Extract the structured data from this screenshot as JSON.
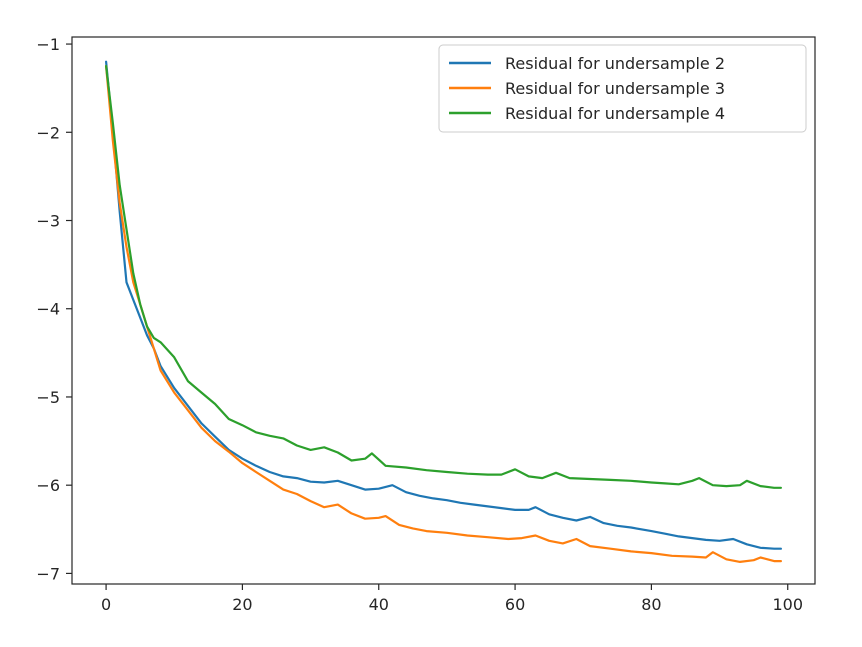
{
  "chart_data": {
    "type": "line",
    "title": "",
    "xlabel": "",
    "ylabel": "",
    "xlim": [
      -5,
      104
    ],
    "ylim": [
      -7.12,
      -0.92
    ],
    "x_ticks": [
      0,
      20,
      40,
      60,
      80,
      100
    ],
    "x_tick_labels": [
      "0",
      "20",
      "40",
      "60",
      "80",
      "100"
    ],
    "y_ticks": [
      -1,
      -2,
      -3,
      -4,
      -5,
      -6,
      -7
    ],
    "y_tick_labels": [
      "−1",
      "−2",
      "−3",
      "−4",
      "−5",
      "−6",
      "−7"
    ],
    "grid": false,
    "legend_position": "top-right",
    "series": [
      {
        "name": "Residual for undersample 2",
        "color": "#1f77b4",
        "points": [
          [
            0,
            -1.2
          ],
          [
            1,
            -2.0
          ],
          [
            2,
            -2.9
          ],
          [
            3,
            -3.7
          ],
          [
            4,
            -3.9
          ],
          [
            5,
            -4.1
          ],
          [
            6,
            -4.3
          ],
          [
            7,
            -4.45
          ],
          [
            8,
            -4.65
          ],
          [
            10,
            -4.9
          ],
          [
            12,
            -5.1
          ],
          [
            14,
            -5.3
          ],
          [
            16,
            -5.45
          ],
          [
            18,
            -5.6
          ],
          [
            20,
            -5.7
          ],
          [
            22,
            -5.78
          ],
          [
            24,
            -5.85
          ],
          [
            26,
            -5.9
          ],
          [
            28,
            -5.92
          ],
          [
            30,
            -5.96
          ],
          [
            32,
            -5.97
          ],
          [
            34,
            -5.95
          ],
          [
            36,
            -6.0
          ],
          [
            38,
            -6.05
          ],
          [
            40,
            -6.04
          ],
          [
            42,
            -6.0
          ],
          [
            44,
            -6.08
          ],
          [
            46,
            -6.12
          ],
          [
            48,
            -6.15
          ],
          [
            50,
            -6.17
          ],
          [
            52,
            -6.2
          ],
          [
            54,
            -6.22
          ],
          [
            56,
            -6.24
          ],
          [
            58,
            -6.26
          ],
          [
            60,
            -6.28
          ],
          [
            62,
            -6.28
          ],
          [
            63,
            -6.25
          ],
          [
            65,
            -6.33
          ],
          [
            67,
            -6.37
          ],
          [
            69,
            -6.4
          ],
          [
            71,
            -6.36
          ],
          [
            73,
            -6.43
          ],
          [
            75,
            -6.46
          ],
          [
            77,
            -6.48
          ],
          [
            80,
            -6.52
          ],
          [
            82,
            -6.55
          ],
          [
            84,
            -6.58
          ],
          [
            86,
            -6.6
          ],
          [
            88,
            -6.62
          ],
          [
            90,
            -6.63
          ],
          [
            92,
            -6.61
          ],
          [
            94,
            -6.67
          ],
          [
            96,
            -6.71
          ],
          [
            98,
            -6.72
          ],
          [
            99,
            -6.72
          ]
        ]
      },
      {
        "name": "Residual for undersample 3",
        "color": "#ff7f0e",
        "points": [
          [
            0,
            -1.25
          ],
          [
            1,
            -2.1
          ],
          [
            2,
            -2.8
          ],
          [
            3,
            -3.3
          ],
          [
            4,
            -3.7
          ],
          [
            5,
            -3.95
          ],
          [
            6,
            -4.2
          ],
          [
            7,
            -4.45
          ],
          [
            8,
            -4.7
          ],
          [
            10,
            -4.95
          ],
          [
            12,
            -5.15
          ],
          [
            14,
            -5.35
          ],
          [
            16,
            -5.5
          ],
          [
            18,
            -5.62
          ],
          [
            20,
            -5.75
          ],
          [
            22,
            -5.85
          ],
          [
            24,
            -5.95
          ],
          [
            26,
            -6.05
          ],
          [
            28,
            -6.1
          ],
          [
            30,
            -6.18
          ],
          [
            32,
            -6.25
          ],
          [
            34,
            -6.22
          ],
          [
            36,
            -6.32
          ],
          [
            38,
            -6.38
          ],
          [
            40,
            -6.37
          ],
          [
            41,
            -6.35
          ],
          [
            43,
            -6.45
          ],
          [
            45,
            -6.49
          ],
          [
            47,
            -6.52
          ],
          [
            50,
            -6.54
          ],
          [
            53,
            -6.57
          ],
          [
            56,
            -6.59
          ],
          [
            59,
            -6.61
          ],
          [
            61,
            -6.6
          ],
          [
            63,
            -6.57
          ],
          [
            65,
            -6.63
          ],
          [
            67,
            -6.66
          ],
          [
            69,
            -6.61
          ],
          [
            71,
            -6.69
          ],
          [
            74,
            -6.72
          ],
          [
            77,
            -6.75
          ],
          [
            80,
            -6.77
          ],
          [
            83,
            -6.8
          ],
          [
            86,
            -6.81
          ],
          [
            88,
            -6.82
          ],
          [
            89,
            -6.76
          ],
          [
            91,
            -6.84
          ],
          [
            93,
            -6.87
          ],
          [
            95,
            -6.85
          ],
          [
            96,
            -6.82
          ],
          [
            98,
            -6.86
          ],
          [
            99,
            -6.86
          ]
        ]
      },
      {
        "name": "Residual for undersample 4",
        "color": "#2ca02c",
        "points": [
          [
            0,
            -1.25
          ],
          [
            1,
            -1.9
          ],
          [
            2,
            -2.6
          ],
          [
            3,
            -3.1
          ],
          [
            4,
            -3.6
          ],
          [
            5,
            -3.95
          ],
          [
            6,
            -4.2
          ],
          [
            7,
            -4.33
          ],
          [
            8,
            -4.38
          ],
          [
            10,
            -4.55
          ],
          [
            12,
            -4.82
          ],
          [
            14,
            -4.95
          ],
          [
            16,
            -5.08
          ],
          [
            18,
            -5.25
          ],
          [
            20,
            -5.32
          ],
          [
            22,
            -5.4
          ],
          [
            24,
            -5.44
          ],
          [
            26,
            -5.47
          ],
          [
            28,
            -5.55
          ],
          [
            30,
            -5.6
          ],
          [
            32,
            -5.57
          ],
          [
            34,
            -5.63
          ],
          [
            36,
            -5.72
          ],
          [
            38,
            -5.7
          ],
          [
            39,
            -5.64
          ],
          [
            41,
            -5.78
          ],
          [
            44,
            -5.8
          ],
          [
            47,
            -5.83
          ],
          [
            50,
            -5.85
          ],
          [
            53,
            -5.87
          ],
          [
            56,
            -5.88
          ],
          [
            58,
            -5.88
          ],
          [
            60,
            -5.82
          ],
          [
            62,
            -5.9
          ],
          [
            64,
            -5.92
          ],
          [
            66,
            -5.86
          ],
          [
            68,
            -5.92
          ],
          [
            71,
            -5.93
          ],
          [
            74,
            -5.94
          ],
          [
            77,
            -5.95
          ],
          [
            80,
            -5.97
          ],
          [
            82,
            -5.98
          ],
          [
            84,
            -5.99
          ],
          [
            86,
            -5.95
          ],
          [
            87,
            -5.92
          ],
          [
            89,
            -6.0
          ],
          [
            91,
            -6.01
          ],
          [
            93,
            -6.0
          ],
          [
            94,
            -5.95
          ],
          [
            96,
            -6.01
          ],
          [
            98,
            -6.03
          ],
          [
            99,
            -6.03
          ]
        ]
      }
    ]
  }
}
